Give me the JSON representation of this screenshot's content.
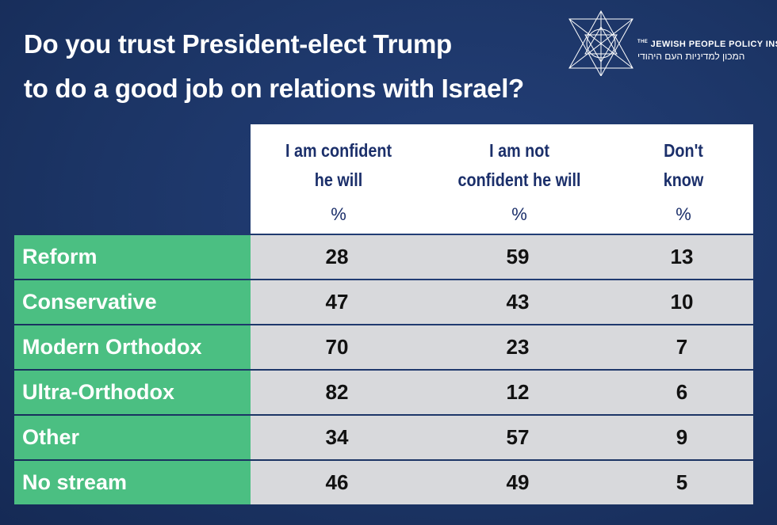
{
  "title": {
    "line1": "Do you trust President-elect Trump",
    "line2": "to do a good job on relations with Israel?"
  },
  "logo": {
    "the": "THE",
    "org_en": "JEWISH PEOPLE POLICY INSTITUTE",
    "org_he": "המכון למדיניות העם היהודי"
  },
  "chart_data": {
    "type": "table",
    "title": "Do you trust President-elect Trump to do a good job on relations with Israel?",
    "columns": [
      {
        "line1": "I am confident",
        "line2": "he will",
        "unit": "%"
      },
      {
        "line1": "I am not",
        "line2": "confident he will",
        "unit": "%"
      },
      {
        "line1": "Don't",
        "line2": "know",
        "unit": "%"
      }
    ],
    "rows": [
      {
        "label": "Reform",
        "values": [
          28,
          59,
          13
        ]
      },
      {
        "label": "Conservative",
        "values": [
          47,
          43,
          10
        ]
      },
      {
        "label": "Modern Orthodox",
        "values": [
          70,
          23,
          7
        ]
      },
      {
        "label": "Ultra-Orthodox",
        "values": [
          82,
          12,
          6
        ]
      },
      {
        "label": "Other",
        "values": [
          34,
          57,
          9
        ]
      },
      {
        "label": "No stream",
        "values": [
          46,
          49,
          5
        ]
      }
    ]
  },
  "colors": {
    "background": "#1c3566",
    "row_label_bg": "#4bbf82",
    "cell_bg": "#d8d9dc",
    "header_text": "#1b2f6a"
  }
}
